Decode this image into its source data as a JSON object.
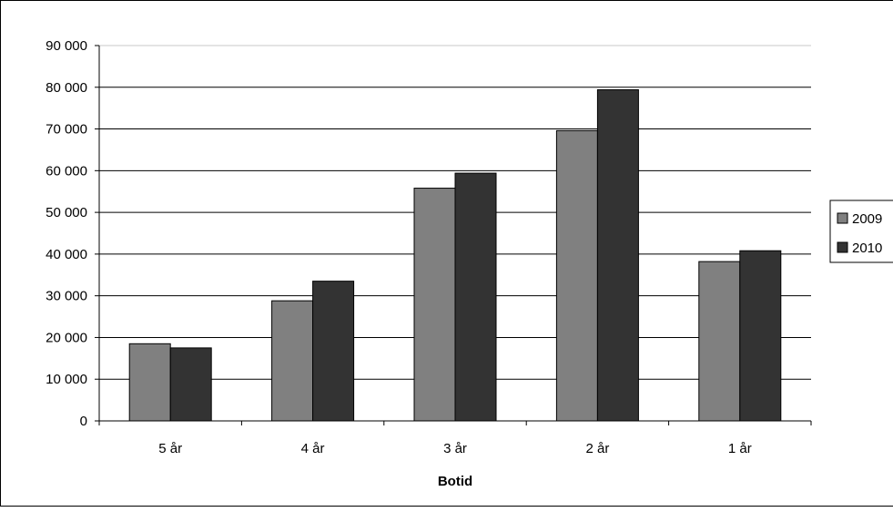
{
  "chart_data": {
    "type": "bar",
    "title": "",
    "xlabel": "Botid",
    "ylabel": "",
    "categories": [
      "5 år",
      "4 år",
      "3 år",
      "2 år",
      "1 år"
    ],
    "series": [
      {
        "name": "2009",
        "values": [
          18500,
          28800,
          55800,
          69600,
          38200
        ],
        "color": "#808080"
      },
      {
        "name": "2010",
        "values": [
          17500,
          33500,
          59400,
          79400,
          40800
        ],
        "color": "#333333"
      }
    ],
    "ylim": [
      0,
      90000
    ],
    "yticks": [
      {
        "value": 0,
        "label": "0"
      },
      {
        "value": 10000,
        "label": "10 000"
      },
      {
        "value": 20000,
        "label": "20 000"
      },
      {
        "value": 30000,
        "label": "30 000"
      },
      {
        "value": 40000,
        "label": "40 000"
      },
      {
        "value": 50000,
        "label": "50 000"
      },
      {
        "value": 60000,
        "label": "60 000"
      },
      {
        "value": 70000,
        "label": "70 000"
      },
      {
        "value": 80000,
        "label": "80 000"
      },
      {
        "value": 90000,
        "label": "90 000"
      }
    ],
    "grid": true,
    "legend_position": "right"
  }
}
